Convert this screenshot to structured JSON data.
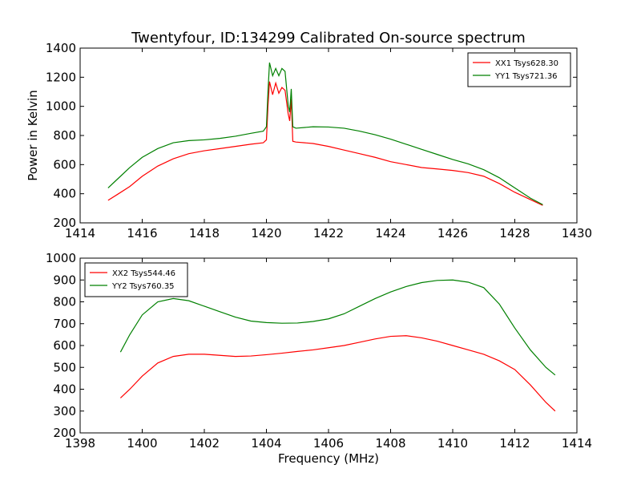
{
  "chart_data": [
    {
      "type": "line",
      "title": "Twentyfour, ID:134299 Calibrated On-source spectrum",
      "xlabel": "",
      "ylabel": "Power in Kelvin",
      "xlim": [
        1414,
        1430
      ],
      "ylim": [
        200,
        1400
      ],
      "xticks": [
        1414,
        1416,
        1418,
        1420,
        1422,
        1424,
        1426,
        1428,
        1430
      ],
      "yticks": [
        200,
        400,
        600,
        800,
        1000,
        1200,
        1400
      ],
      "grid": false,
      "legend_position": "top-right",
      "series": [
        {
          "name": "XX1 Tsys628.30",
          "color": "#ff0000",
          "x": [
            1414.9,
            1415.2,
            1415.6,
            1416.0,
            1416.5,
            1417.0,
            1417.5,
            1418.0,
            1418.5,
            1419.0,
            1419.5,
            1419.9,
            1420.0,
            1420.05,
            1420.1,
            1420.2,
            1420.3,
            1420.4,
            1420.5,
            1420.6,
            1420.7,
            1420.75,
            1420.8,
            1420.85,
            1420.95,
            1421.5,
            1422.0,
            1422.5,
            1423.0,
            1423.5,
            1424.0,
            1424.5,
            1425.0,
            1425.5,
            1426.0,
            1426.5,
            1427.0,
            1427.5,
            1428.0,
            1428.5,
            1428.9
          ],
          "y": [
            355,
            395,
            450,
            520,
            590,
            640,
            675,
            695,
            710,
            725,
            740,
            750,
            770,
            1000,
            1170,
            1080,
            1160,
            1090,
            1130,
            1110,
            950,
            900,
            1050,
            760,
            755,
            745,
            725,
            700,
            675,
            650,
            620,
            600,
            580,
            570,
            560,
            545,
            520,
            470,
            410,
            360,
            320
          ]
        },
        {
          "name": "YY1 Tsys721.36",
          "color": "#008000",
          "x": [
            1414.9,
            1415.2,
            1415.6,
            1416.0,
            1416.5,
            1417.0,
            1417.5,
            1418.0,
            1418.5,
            1419.0,
            1419.5,
            1419.9,
            1420.0,
            1420.05,
            1420.1,
            1420.2,
            1420.3,
            1420.4,
            1420.5,
            1420.6,
            1420.7,
            1420.75,
            1420.8,
            1420.85,
            1420.95,
            1421.5,
            1422.0,
            1422.5,
            1423.0,
            1423.5,
            1424.0,
            1424.5,
            1425.0,
            1425.5,
            1426.0,
            1426.5,
            1427.0,
            1427.5,
            1428.0,
            1428.5,
            1428.9
          ],
          "y": [
            440,
            500,
            580,
            650,
            710,
            750,
            765,
            770,
            780,
            795,
            815,
            830,
            860,
            1100,
            1300,
            1210,
            1260,
            1210,
            1260,
            1240,
            1010,
            960,
            1120,
            860,
            850,
            860,
            858,
            850,
            830,
            805,
            775,
            740,
            705,
            670,
            635,
            605,
            565,
            510,
            440,
            370,
            325
          ]
        }
      ]
    },
    {
      "type": "line",
      "title": "",
      "xlabel": "Frequency (MHz)",
      "ylabel": "",
      "xlim": [
        1398,
        1414
      ],
      "ylim": [
        200,
        1000
      ],
      "xticks": [
        1398,
        1400,
        1402,
        1404,
        1406,
        1408,
        1410,
        1412,
        1414
      ],
      "yticks": [
        200,
        300,
        400,
        500,
        600,
        700,
        800,
        900,
        1000
      ],
      "grid": false,
      "legend_position": "top-left",
      "series": [
        {
          "name": "XX2 Tsys544.46",
          "color": "#ff0000",
          "x": [
            1399.3,
            1399.6,
            1400.0,
            1400.5,
            1401.0,
            1401.5,
            1402.0,
            1402.5,
            1403.0,
            1403.5,
            1404.0,
            1404.5,
            1405.0,
            1405.5,
            1406.0,
            1406.5,
            1407.0,
            1407.5,
            1408.0,
            1408.5,
            1409.0,
            1409.5,
            1410.0,
            1410.5,
            1411.0,
            1411.5,
            1412.0,
            1412.5,
            1413.0,
            1413.3
          ],
          "y": [
            360,
            400,
            460,
            520,
            550,
            560,
            560,
            555,
            550,
            552,
            558,
            565,
            573,
            580,
            590,
            600,
            615,
            630,
            642,
            645,
            635,
            620,
            600,
            580,
            560,
            530,
            490,
            420,
            340,
            300
          ]
        },
        {
          "name": "YY2 Tsys760.35",
          "color": "#008000",
          "x": [
            1399.3,
            1399.6,
            1400.0,
            1400.5,
            1401.0,
            1401.5,
            1402.0,
            1402.5,
            1403.0,
            1403.5,
            1404.0,
            1404.5,
            1405.0,
            1405.5,
            1406.0,
            1406.5,
            1407.0,
            1407.5,
            1408.0,
            1408.5,
            1409.0,
            1409.5,
            1410.0,
            1410.5,
            1411.0,
            1411.5,
            1412.0,
            1412.5,
            1413.0,
            1413.3
          ],
          "y": [
            570,
            650,
            740,
            800,
            815,
            805,
            780,
            755,
            730,
            712,
            705,
            702,
            703,
            710,
            722,
            745,
            780,
            815,
            845,
            870,
            888,
            898,
            900,
            890,
            865,
            790,
            680,
            580,
            500,
            465
          ]
        }
      ]
    }
  ]
}
